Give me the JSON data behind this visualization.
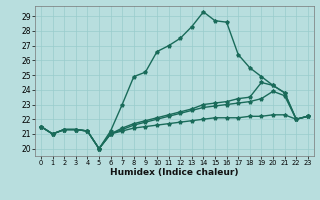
{
  "xlabel": "Humidex (Indice chaleur)",
  "bg_color": "#b8dede",
  "line_color": "#1a6b5a",
  "grid_color": "#99cccc",
  "xlim": [
    -0.5,
    23.5
  ],
  "ylim": [
    19.5,
    29.7
  ],
  "xticks": [
    0,
    1,
    2,
    3,
    4,
    5,
    6,
    7,
    8,
    9,
    10,
    11,
    12,
    13,
    14,
    15,
    16,
    17,
    18,
    19,
    20,
    21,
    22,
    23
  ],
  "yticks": [
    20,
    21,
    22,
    23,
    24,
    25,
    26,
    27,
    28,
    29
  ],
  "line1": [
    21.5,
    21.0,
    21.3,
    21.3,
    21.2,
    20.0,
    21.2,
    23.0,
    24.9,
    25.2,
    26.6,
    27.0,
    27.5,
    28.3,
    29.3,
    28.7,
    28.6,
    26.4,
    25.5,
    24.9,
    24.3,
    23.8,
    22.0,
    22.2
  ],
  "line2": [
    21.5,
    21.0,
    21.3,
    21.3,
    21.2,
    20.0,
    21.0,
    21.4,
    21.7,
    21.9,
    22.1,
    22.3,
    22.5,
    22.7,
    23.0,
    23.1,
    23.2,
    23.4,
    23.5,
    24.5,
    24.3,
    23.8,
    22.0,
    22.2
  ],
  "line3": [
    21.5,
    21.0,
    21.3,
    21.3,
    21.2,
    20.0,
    21.0,
    21.3,
    21.6,
    21.8,
    22.0,
    22.2,
    22.4,
    22.6,
    22.8,
    22.9,
    23.0,
    23.1,
    23.2,
    23.4,
    23.9,
    23.6,
    22.0,
    22.2
  ],
  "line4": [
    21.5,
    21.0,
    21.3,
    21.3,
    21.2,
    20.0,
    21.0,
    21.2,
    21.4,
    21.5,
    21.6,
    21.7,
    21.8,
    21.9,
    22.0,
    22.1,
    22.1,
    22.1,
    22.2,
    22.2,
    22.3,
    22.3,
    22.0,
    22.2
  ]
}
